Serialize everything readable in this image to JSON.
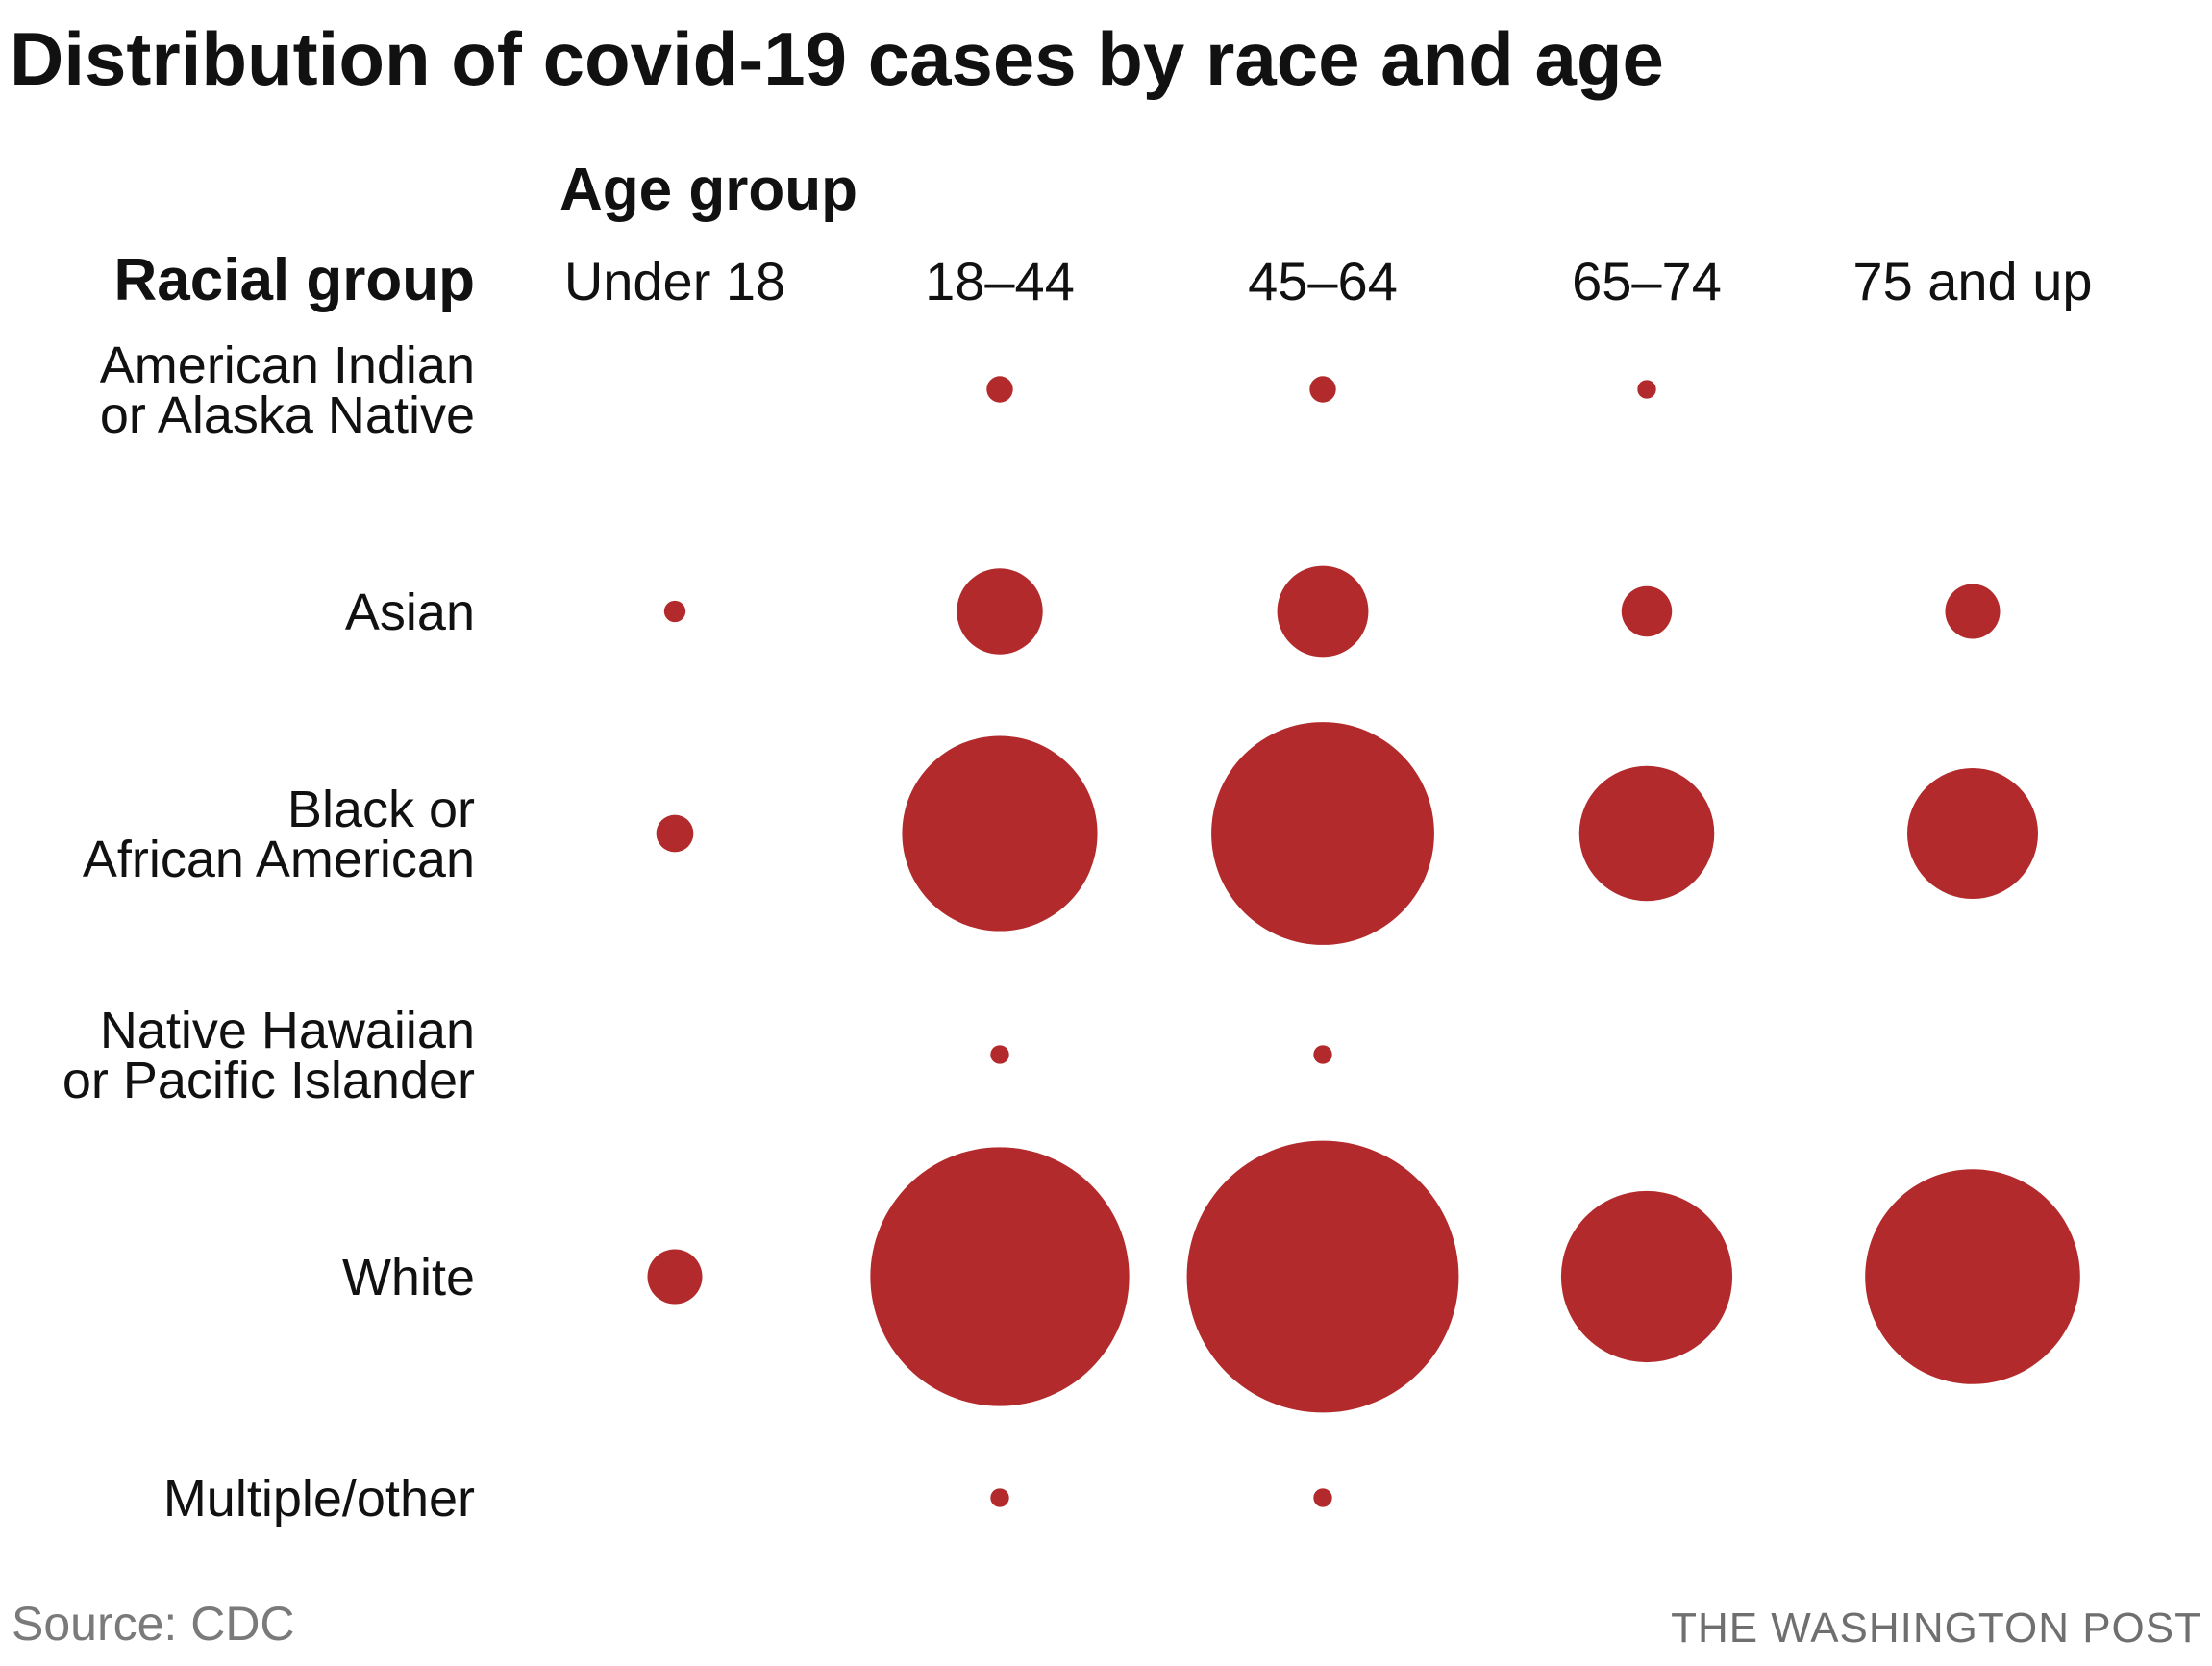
{
  "chart_data": {
    "type": "bubble-grid",
    "title": "Distribution of covid-19 cases by race and age",
    "x_heading": "Age group",
    "y_heading": "Racial group",
    "columns": [
      "Under 18",
      "18–44",
      "45–64",
      "65–74",
      "75 and up"
    ],
    "rows": [
      {
        "label_lines": [
          "American Indian",
          "or Alaska Native"
        ],
        "values": [
          0,
          0.3,
          0.3,
          0.15,
          0
        ]
      },
      {
        "label_lines": [
          "Asian"
        ],
        "values": [
          0.2,
          3.2,
          3.6,
          1.1,
          1.3
        ]
      },
      {
        "label_lines": [
          "Black or",
          "African American"
        ],
        "values": [
          0.6,
          16.5,
          21.5,
          7.9,
          7.4
        ]
      },
      {
        "label_lines": [
          "Native Hawaiian",
          "or Pacific Islander"
        ],
        "values": [
          0,
          0.15,
          0.15,
          0,
          0
        ]
      },
      {
        "label_lines": [
          "White"
        ],
        "values": [
          1.3,
          29.0,
          32.0,
          12.7,
          20.0
        ]
      },
      {
        "label_lines": [
          "Multiple/other"
        ],
        "values": [
          0,
          0.15,
          0.15,
          0,
          0
        ]
      }
    ],
    "value_unit": "relative share of cases (estimated from bubble area)",
    "grid": false,
    "legend": "none"
  },
  "footer": {
    "source": "Source: CDC",
    "credit": "THE WASHINGTON POST"
  },
  "colors": {
    "bubble": "#b22a2b",
    "text": "#111111",
    "source": "#7a7a7a",
    "credit": "#6f6f6f",
    "background": "#ffffff"
  }
}
